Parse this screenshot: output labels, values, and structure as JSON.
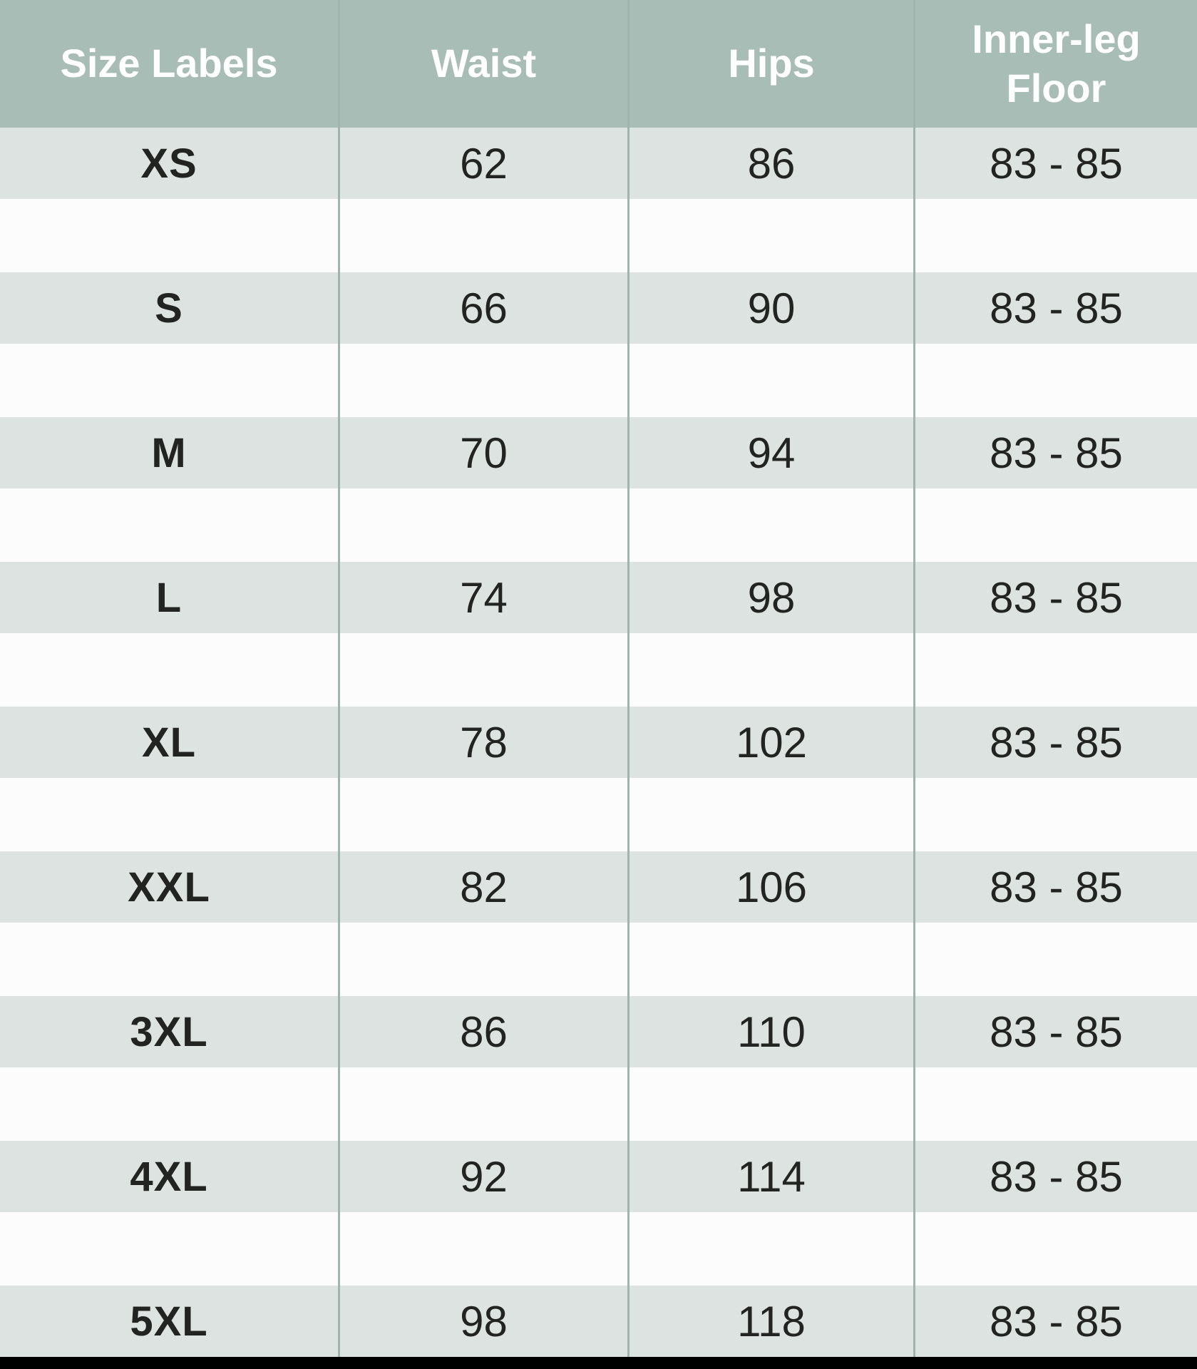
{
  "chart_data": {
    "type": "table",
    "columns": [
      "Size Labels",
      "Waist",
      "Hips",
      "Inner-leg Floor"
    ],
    "rows": [
      [
        "XS",
        "62",
        "86",
        "83 - 85"
      ],
      [
        "S",
        "66",
        "90",
        "83 - 85"
      ],
      [
        "M",
        "70",
        "94",
        "83 - 85"
      ],
      [
        "L",
        "74",
        "98",
        "83 - 85"
      ],
      [
        "XL",
        "78",
        "102",
        "83 - 85"
      ],
      [
        "XXL",
        "82",
        "106",
        "83 - 85"
      ],
      [
        "3XL",
        "86",
        "110",
        "83 - 85"
      ],
      [
        "4XL",
        "92",
        "114",
        "83 - 85"
      ],
      [
        "5XL",
        "98",
        "118",
        "83 - 85"
      ]
    ],
    "layout_hints": {
      "header_position": "top",
      "grid": "vertical-dividers-only",
      "alternating_spacer_rows": true,
      "units_shown": false
    }
  },
  "colors": {
    "header_bg": "#a9bdb7",
    "header_text": "#ffffff",
    "row_bg": "#dde3e0",
    "gap_bg": "#fbfcfb",
    "divider": "#9fb4ad",
    "cell_text": "#212420",
    "bottom_bar": "#000000"
  }
}
